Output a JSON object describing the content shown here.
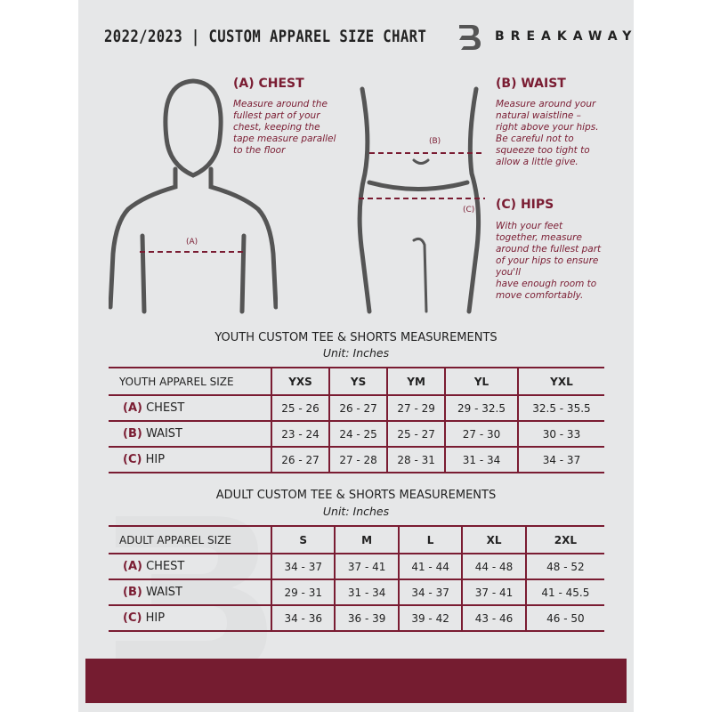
{
  "header": {
    "title": "2022/2023  |  CUSTOM APPAREL SIZE CHART",
    "brand": "BREAKAWAY"
  },
  "colors": {
    "accent": "#7a1c32",
    "background": "#e6e7e8"
  },
  "measures": {
    "chest": {
      "heading": "(A) CHEST",
      "text": "Measure around the\nfullest part of your\nchest, keeping the\ntape measure parallel\nto the floor",
      "marker": "(A)"
    },
    "waist": {
      "heading": "(B) WAIST",
      "text": "Measure around your\nnatural waistline –\nright above your hips.\nBe careful not to\nsqueeze too tight to\nallow a little give.",
      "marker": "(B)"
    },
    "hips": {
      "heading": "(C) HIPS",
      "text": "With your feet\ntogether, measure\naround the fullest part\nof your hips to ensure\nyou'll\nhave enough room to\nmove comfortably.",
      "marker": "(C)"
    }
  },
  "youth": {
    "title": "YOUTH CUSTOM TEE & SHORTS MEASUREMENTS",
    "unit": "Unit: Inches",
    "size_label": "YOUTH APPAREL SIZE",
    "sizes": [
      "YXS",
      "YS",
      "YM",
      "YL",
      "YXL"
    ],
    "rows": [
      {
        "letter": "(A)",
        "name": "CHEST",
        "values": [
          "25 - 26",
          "26 - 27",
          "27 - 29",
          "29 - 32.5",
          "32.5 - 35.5"
        ]
      },
      {
        "letter": "(B)",
        "name": "WAIST",
        "values": [
          "23 - 24",
          "24 - 25",
          "25 - 27",
          "27 - 30",
          "30 - 33"
        ]
      },
      {
        "letter": "(C)",
        "name": "HIP",
        "values": [
          "26 - 27",
          "27 - 28",
          "28 - 31",
          "31 - 34",
          "34 - 37"
        ]
      }
    ]
  },
  "adult": {
    "title": "ADULT CUSTOM TEE & SHORTS MEASUREMENTS",
    "unit": "Unit: Inches",
    "size_label": "ADULT APPAREL SIZE",
    "sizes": [
      "S",
      "M",
      "L",
      "XL",
      "2XL"
    ],
    "rows": [
      {
        "letter": "(A)",
        "name": "CHEST",
        "values": [
          "34 - 37",
          "37 - 41",
          "41 - 44",
          "44 - 48",
          "48 - 52"
        ]
      },
      {
        "letter": "(B)",
        "name": "WAIST",
        "values": [
          "29 - 31",
          "31 - 34",
          "34 - 37",
          "37 - 41",
          "41 - 45.5"
        ]
      },
      {
        "letter": "(C)",
        "name": "HIP",
        "values": [
          "34 - 36",
          "36 - 39",
          "39 - 42",
          "43 - 46",
          "46 - 50"
        ]
      }
    ]
  }
}
